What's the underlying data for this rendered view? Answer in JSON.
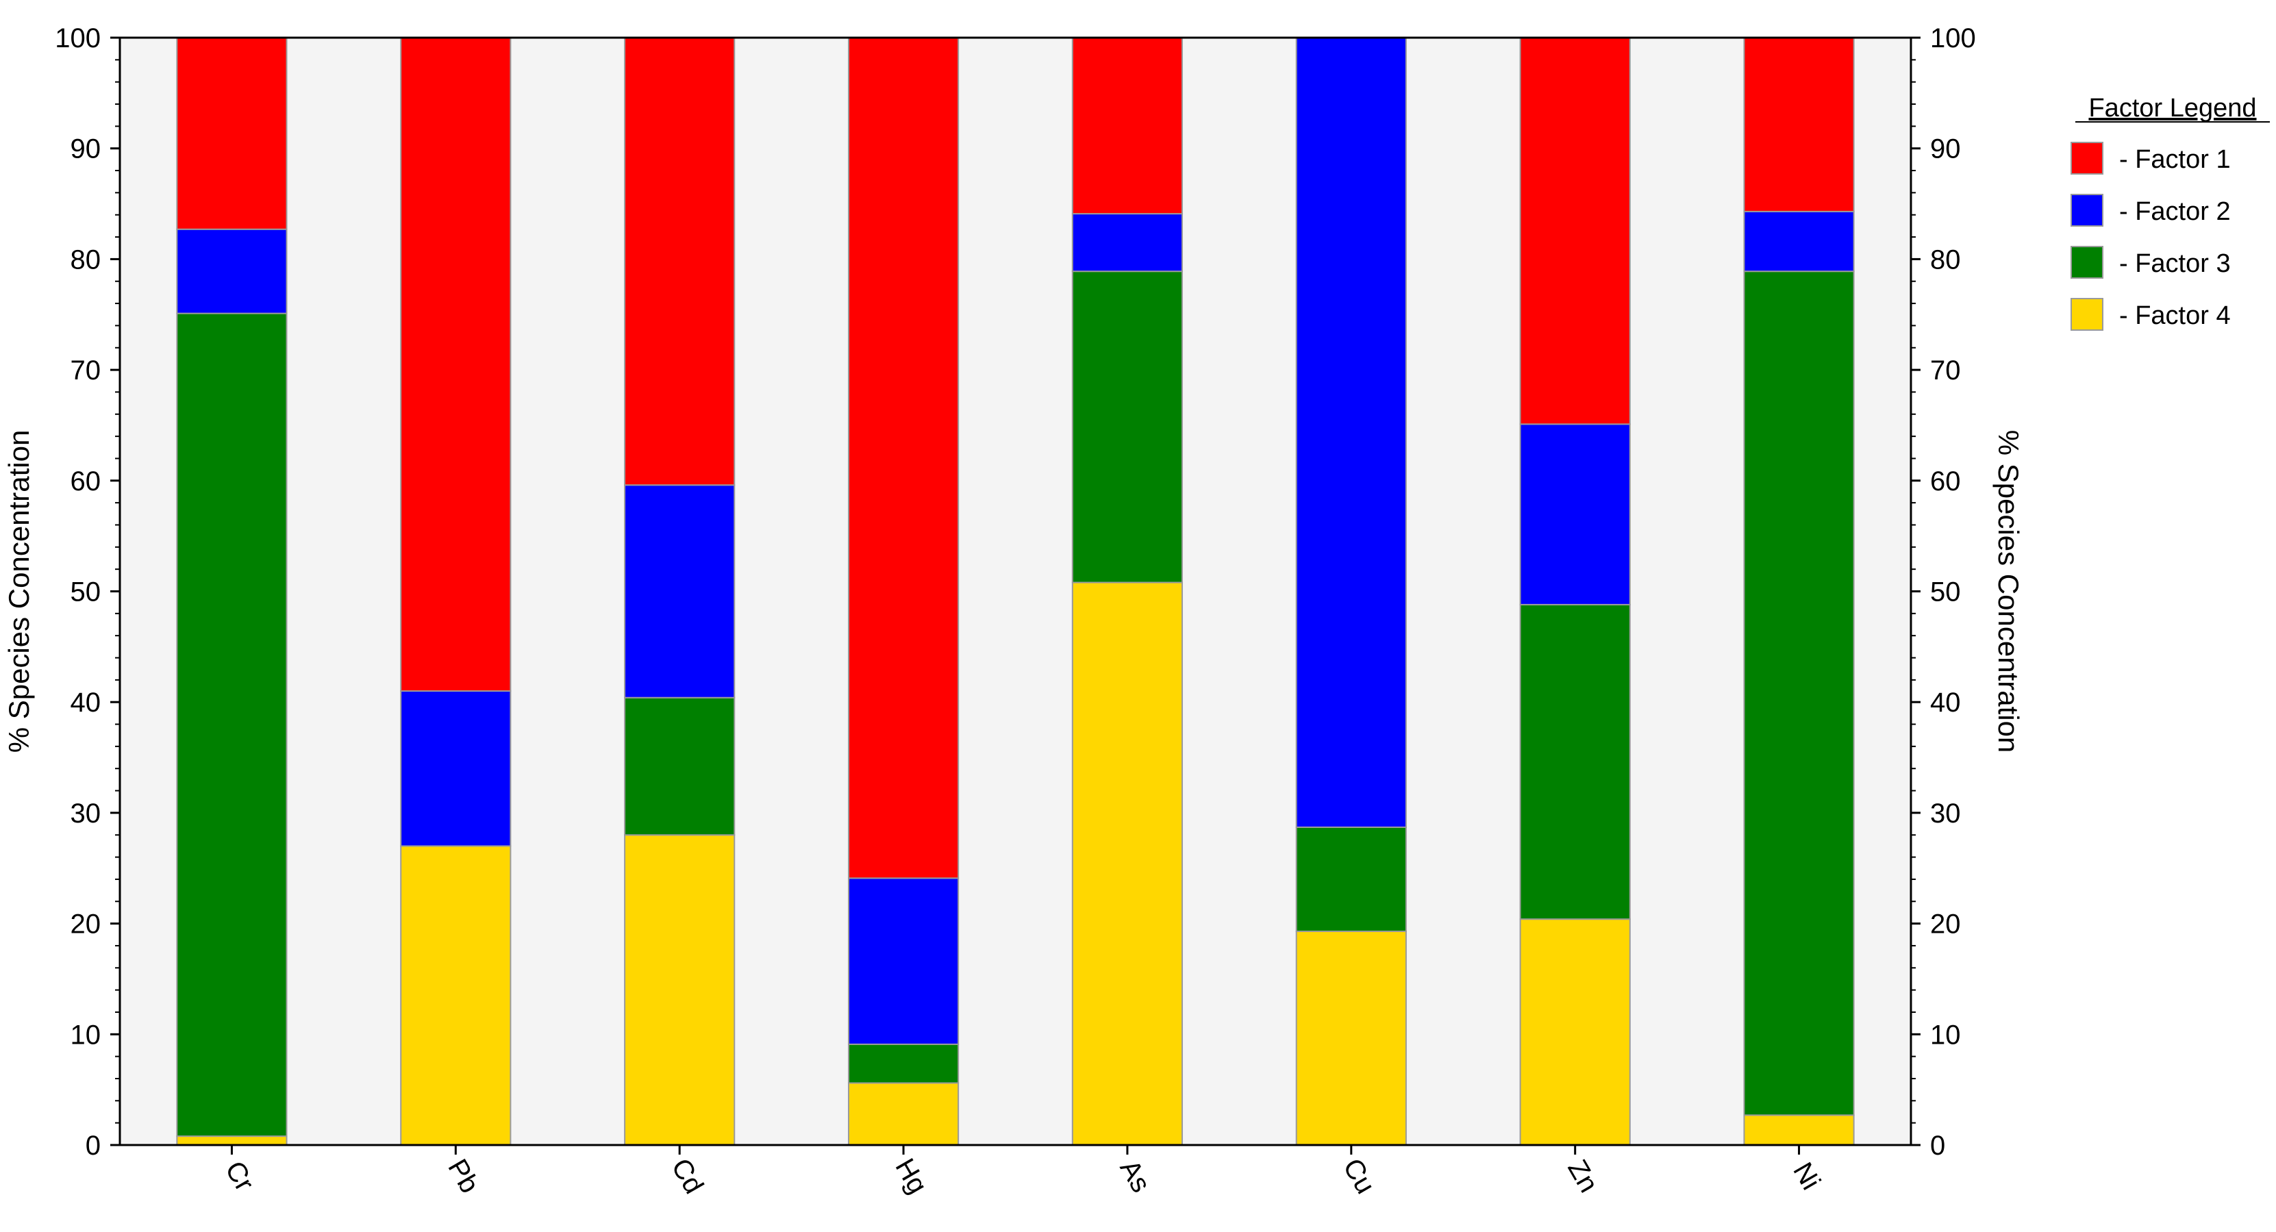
{
  "chart_data": {
    "type": "bar",
    "stacked": true,
    "categories": [
      "Cr",
      "Pb",
      "Cd",
      "Hg",
      "As",
      "Cu",
      "Zn",
      "Ni"
    ],
    "series": [
      {
        "name": "- Factor 4",
        "color": "#FFD700",
        "values": [
          0.8,
          27.0,
          28.0,
          5.6,
          50.8,
          19.3,
          20.4,
          2.7
        ]
      },
      {
        "name": "- Factor 3",
        "color": "#008000",
        "values": [
          74.3,
          0.0,
          12.4,
          3.5,
          28.1,
          9.4,
          28.4,
          76.2
        ]
      },
      {
        "name": "- Factor 2",
        "color": "#0000FF",
        "values": [
          7.6,
          14.0,
          19.2,
          15.0,
          5.2,
          71.3,
          16.3,
          5.4
        ]
      },
      {
        "name": "- Factor 1",
        "color": "#FF0000",
        "values": [
          17.3,
          59.0,
          40.4,
          75.9,
          15.9,
          0.0,
          34.9,
          15.7
        ]
      }
    ],
    "ylabel": "% Species Concentration",
    "ylabel_right": "% Species Concentration",
    "ylim": [
      0,
      100
    ],
    "yticks": [
      0,
      10,
      20,
      30,
      40,
      50,
      60,
      70,
      80,
      90,
      100
    ],
    "legend": {
      "title": "Factor Legend",
      "placement": "right",
      "entries": [
        "- Factor 1",
        "- Factor 2",
        "- Factor 3",
        "- Factor 4"
      ],
      "colors": [
        "#FF0000",
        "#0000FF",
        "#008000",
        "#FFD700"
      ]
    },
    "plot_background": "#F4F4F4",
    "grid": false
  }
}
